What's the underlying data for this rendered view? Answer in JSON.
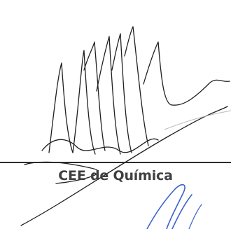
{
  "signature": {
    "label": "CEE de Química"
  },
  "colors": {
    "signature_ink": "#1f1f1f",
    "stamp_ink": "#3b62c9",
    "label_text": "#3f3f3f",
    "rule_line": "#2b2b2b",
    "background": "#ffffff"
  }
}
